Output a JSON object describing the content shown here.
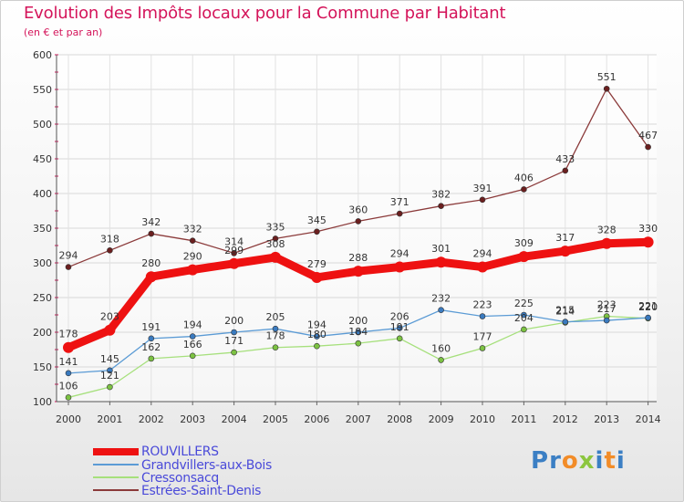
{
  "title": "Evolution des Impôts locaux pour la Commune par Habitant",
  "subtitle": "(en € et par an)",
  "logo": {
    "text": "Proxiti",
    "letter_colors": [
      "#3b7fc4",
      "#3b7fc4",
      "#f28c28",
      "#8cc63f",
      "#3b7fc4",
      "#f28c28"
    ]
  },
  "chart_data": {
    "type": "line",
    "title": "Evolution des Impôts locaux pour la Commune par Habitant",
    "subtitle": "(en € et par an)",
    "xlabel": "",
    "ylabel": "",
    "ylim": [
      100,
      600
    ],
    "yticks": [
      100,
      150,
      200,
      250,
      300,
      350,
      400,
      450,
      500,
      550,
      600
    ],
    "grid": true,
    "legend_position": "bottom-left",
    "x": [
      "2000",
      "2001",
      "2002",
      "2003",
      "2004",
      "2005",
      "2006",
      "2007",
      "2008",
      "2009",
      "2010",
      "2011",
      "2012",
      "2013",
      "2014"
    ],
    "series": [
      {
        "name": "ROUVILLERS",
        "color": "#ee1111",
        "highlight": true,
        "values": [
          178,
          203,
          280,
          290,
          299,
          308,
          279,
          288,
          294,
          301,
          294,
          309,
          317,
          328,
          330
        ],
        "labels": [
          "178",
          "203",
          "280",
          "290",
          "299",
          "308",
          "279",
          "288",
          "294",
          "301",
          "294",
          "309",
          "317",
          "328",
          "330"
        ]
      },
      {
        "name": "Grandvillers-aux-Bois",
        "color": "#5b9bd5",
        "marker": "#3a7abf",
        "values": [
          141,
          145,
          191,
          194,
          200,
          205,
          194,
          200,
          206,
          232,
          223,
          225,
          215,
          217,
          221
        ],
        "labels": [
          "141",
          "145",
          "191",
          "194",
          "200",
          "205",
          "194",
          "200",
          "206",
          "232",
          "223",
          "225",
          "215",
          "217",
          "221"
        ]
      },
      {
        "name": "Cressonsacq",
        "color": "#a6e07c",
        "marker": "#7cc242",
        "values": [
          106,
          121,
          162,
          166,
          171,
          178,
          180,
          184,
          191,
          160,
          177,
          204,
          214,
          223,
          220
        ],
        "labels": [
          "106",
          "121",
          "162",
          "166",
          "171",
          "178",
          "180",
          "184",
          "191",
          "160",
          "177",
          "204",
          "214",
          "223",
          "220"
        ]
      },
      {
        "name": "Estrées-Saint-Denis",
        "color": "#8b3a3a",
        "marker": "#6b1f1f",
        "values": [
          294,
          318,
          342,
          332,
          314,
          335,
          345,
          360,
          371,
          382,
          391,
          406,
          433,
          551,
          467
        ],
        "labels": [
          "294",
          "318",
          "342",
          "332",
          "314",
          "335",
          "345",
          "360",
          "371",
          "382",
          "391",
          "406",
          "433",
          "551",
          "467"
        ]
      }
    ]
  }
}
